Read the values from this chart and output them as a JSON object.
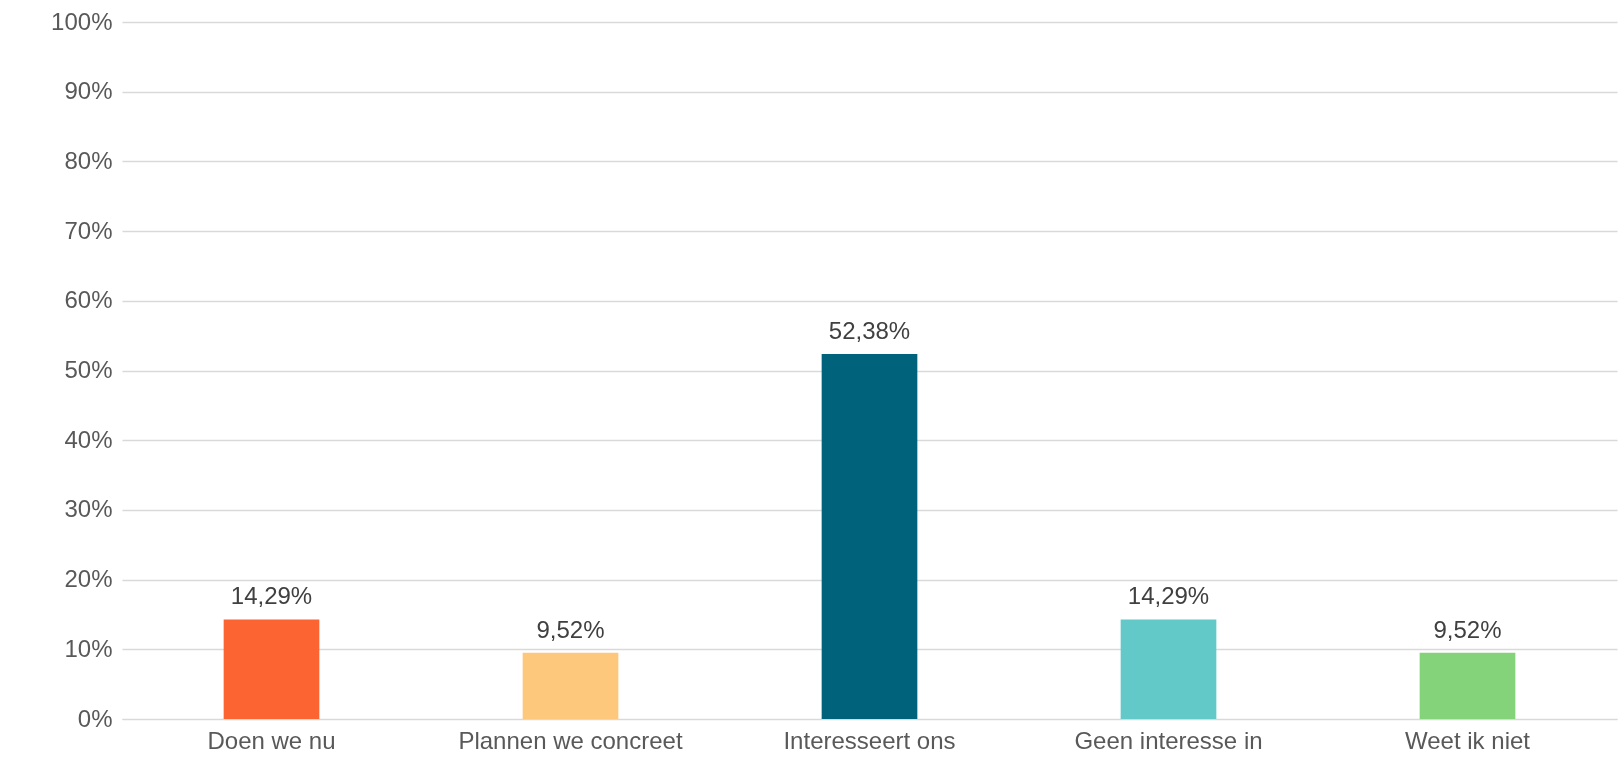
{
  "chart_data": {
    "type": "bar",
    "categories": [
      "Doen we nu",
      "Plannen we concreet",
      "Interesseert ons",
      "Geen interesse in",
      "Weet ik niet"
    ],
    "values": [
      14.29,
      9.52,
      52.38,
      14.29,
      9.52
    ],
    "colors": [
      "#fc6432",
      "#fec87c",
      "#01627c",
      "#62c8c8",
      "#84d27a"
    ],
    "value_labels": [
      "14,29%",
      "9,52%",
      "52,38%",
      "14,29%",
      "9,52%"
    ],
    "ylim": [
      0,
      100
    ],
    "yticks": [
      {
        "value": 0,
        "label": "0%"
      },
      {
        "value": 10,
        "label": "10%"
      },
      {
        "value": 20,
        "label": "20%"
      },
      {
        "value": 30,
        "label": "30%"
      },
      {
        "value": 40,
        "label": "40%"
      },
      {
        "value": 50,
        "label": "50%"
      },
      {
        "value": 60,
        "label": "60%"
      },
      {
        "value": 70,
        "label": "70%"
      },
      {
        "value": 80,
        "label": "80%"
      },
      {
        "value": 90,
        "label": "90%"
      },
      {
        "value": 100,
        "label": "100%"
      }
    ],
    "grid": "y"
  }
}
